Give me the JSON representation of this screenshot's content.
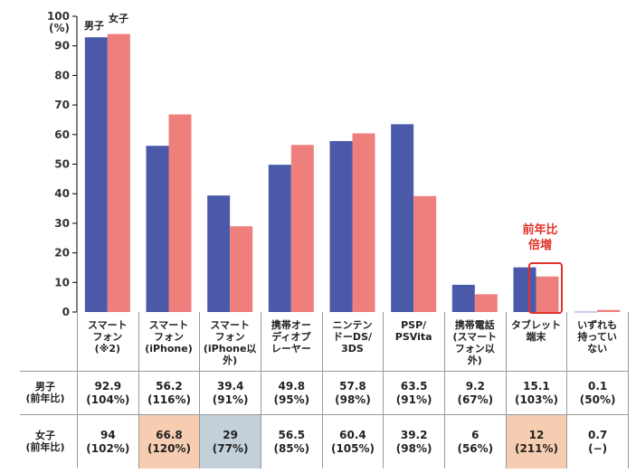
{
  "chart_data": {
    "type": "bar",
    "y_unit": "(%)",
    "ylim": [
      0,
      100
    ],
    "yticks": [
      0,
      10,
      20,
      30,
      40,
      50,
      60,
      70,
      80,
      90,
      100
    ],
    "categories": [
      "スマート\nフォン\n(※2)",
      "スマート\nフォン\n(iPhone)",
      "スマート\nフォン\n(iPhone以\n外)",
      "携帯オー\nディオプ\nレーヤー",
      "ニンテン\nドーDS/\n3DS",
      "PSP/\nPSVita",
      "携帯電話\n(スマート\nフォン以\n外)",
      "タブレット\n端末",
      "いずれも\n持ってい\nない"
    ],
    "series": [
      {
        "name": "男子",
        "color": "#4a5aa8",
        "values": [
          92.9,
          56.2,
          39.4,
          49.8,
          57.8,
          63.5,
          9.2,
          15.1,
          0.1
        ]
      },
      {
        "name": "女子",
        "color": "#ee7f7c",
        "values": [
          94,
          66.8,
          29,
          56.5,
          60.4,
          39.2,
          6,
          12,
          0.7
        ]
      }
    ],
    "legend_placement": "top-left, labels above first bars",
    "grid": false
  },
  "table": {
    "rows": [
      {
        "label": "男子\n(前年比)",
        "cells": [
          {
            "value": "92.9",
            "ratio": "(104%)"
          },
          {
            "value": "56.2",
            "ratio": "(116%)"
          },
          {
            "value": "39.4",
            "ratio": "(91%)"
          },
          {
            "value": "49.8",
            "ratio": "(95%)"
          },
          {
            "value": "57.8",
            "ratio": "(98%)"
          },
          {
            "value": "63.5",
            "ratio": "(91%)"
          },
          {
            "value": "9.2",
            "ratio": "(67%)"
          },
          {
            "value": "15.1",
            "ratio": "(103%)"
          },
          {
            "value": "0.1",
            "ratio": "(50%)"
          }
        ]
      },
      {
        "label": "女子\n(前年比)",
        "cells": [
          {
            "value": "94",
            "ratio": "(102%)"
          },
          {
            "value": "66.8",
            "ratio": "(120%)",
            "highlight": "#f6cdb0"
          },
          {
            "value": "29",
            "ratio": "(77%)",
            "highlight": "#c3cfd9"
          },
          {
            "value": "56.5",
            "ratio": "(85%)"
          },
          {
            "value": "60.4",
            "ratio": "(105%)"
          },
          {
            "value": "39.2",
            "ratio": "(98%)"
          },
          {
            "value": "6",
            "ratio": "(56%)"
          },
          {
            "value": "12",
            "ratio": "(211%)",
            "highlight": "#f6cdb0"
          },
          {
            "value": "0.7",
            "ratio": "(−)"
          }
        ]
      }
    ]
  },
  "annotation": {
    "text": "前年比\n倍増",
    "color": "#e0322a"
  }
}
